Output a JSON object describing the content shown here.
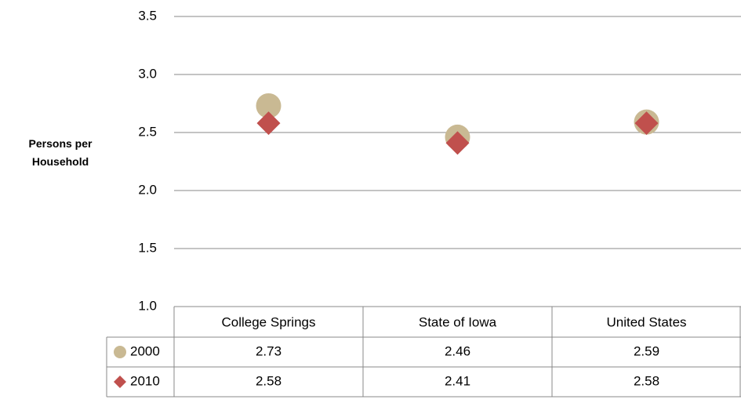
{
  "chart_data": {
    "type": "scatter",
    "y_label": "Persons per Household",
    "categories": [
      "College Springs",
      "State of Iowa",
      "United States"
    ],
    "series": [
      {
        "name": "2000",
        "color": "#c9b993",
        "marker": "circle",
        "values": [
          2.73,
          2.46,
          2.59
        ]
      },
      {
        "name": "2010",
        "color": "#c0504d",
        "marker": "diamond",
        "values": [
          2.58,
          2.41,
          2.58
        ]
      }
    ],
    "ylim": [
      1.0,
      3.5
    ],
    "yticks": [
      {
        "value": 1,
        "label": "1.0"
      },
      1.5,
      {
        "value": 2,
        "label": "2.0"
      },
      2.5,
      {
        "value": 3,
        "label": "3.0"
      },
      3.5
    ],
    "grid": true,
    "data_table": true
  }
}
